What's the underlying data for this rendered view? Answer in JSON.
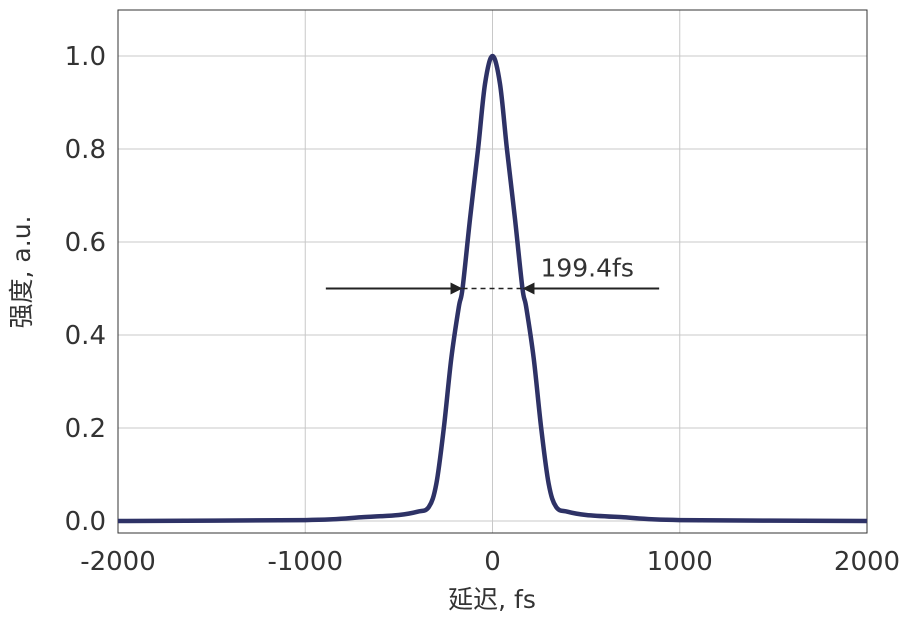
{
  "chart_data": {
    "type": "line",
    "title": "",
    "xlabel": "延迟, fs",
    "ylabel": "强度, a.u.",
    "xlim": [
      -2000,
      2000
    ],
    "ylim": [
      0,
      1.1
    ],
    "xticks": [
      -2000,
      -1000,
      0,
      1000,
      2000
    ],
    "xtick_labels": [
      "-2000",
      "-1000",
      "0",
      "1000",
      "2000"
    ],
    "yticks": [
      0,
      0.2,
      0.4,
      0.6,
      0.8,
      1.0
    ],
    "ytick_labels": [
      "0.0",
      "0.2",
      "0.4",
      "0.6",
      "0.8",
      "1.0"
    ],
    "grid": true,
    "series": [
      {
        "color": "#2e3266",
        "x": [
          -2000,
          -1000,
          -700,
          -500,
          -400,
          -340,
          -300,
          -260,
          -220,
          -180,
          -160,
          -120,
          -77,
          -40,
          0,
          40,
          77,
          120,
          160,
          180,
          220,
          260,
          300,
          340,
          400,
          500,
          700,
          1000,
          2000
        ],
        "y": [
          0,
          0.002,
          0.008,
          0.013,
          0.02,
          0.03,
          0.08,
          0.2,
          0.35,
          0.46,
          0.5,
          0.65,
          0.8,
          0.94,
          1.0,
          0.94,
          0.8,
          0.65,
          0.5,
          0.46,
          0.35,
          0.2,
          0.08,
          0.03,
          0.02,
          0.013,
          0.008,
          0.002,
          0
        ]
      }
    ],
    "annotation": {
      "text": "199.4fs",
      "y": 0.5,
      "left_arrow_from": -890,
      "left_arrow_to": -160,
      "right_arrow_from": 890,
      "right_arrow_to": 160
    }
  }
}
